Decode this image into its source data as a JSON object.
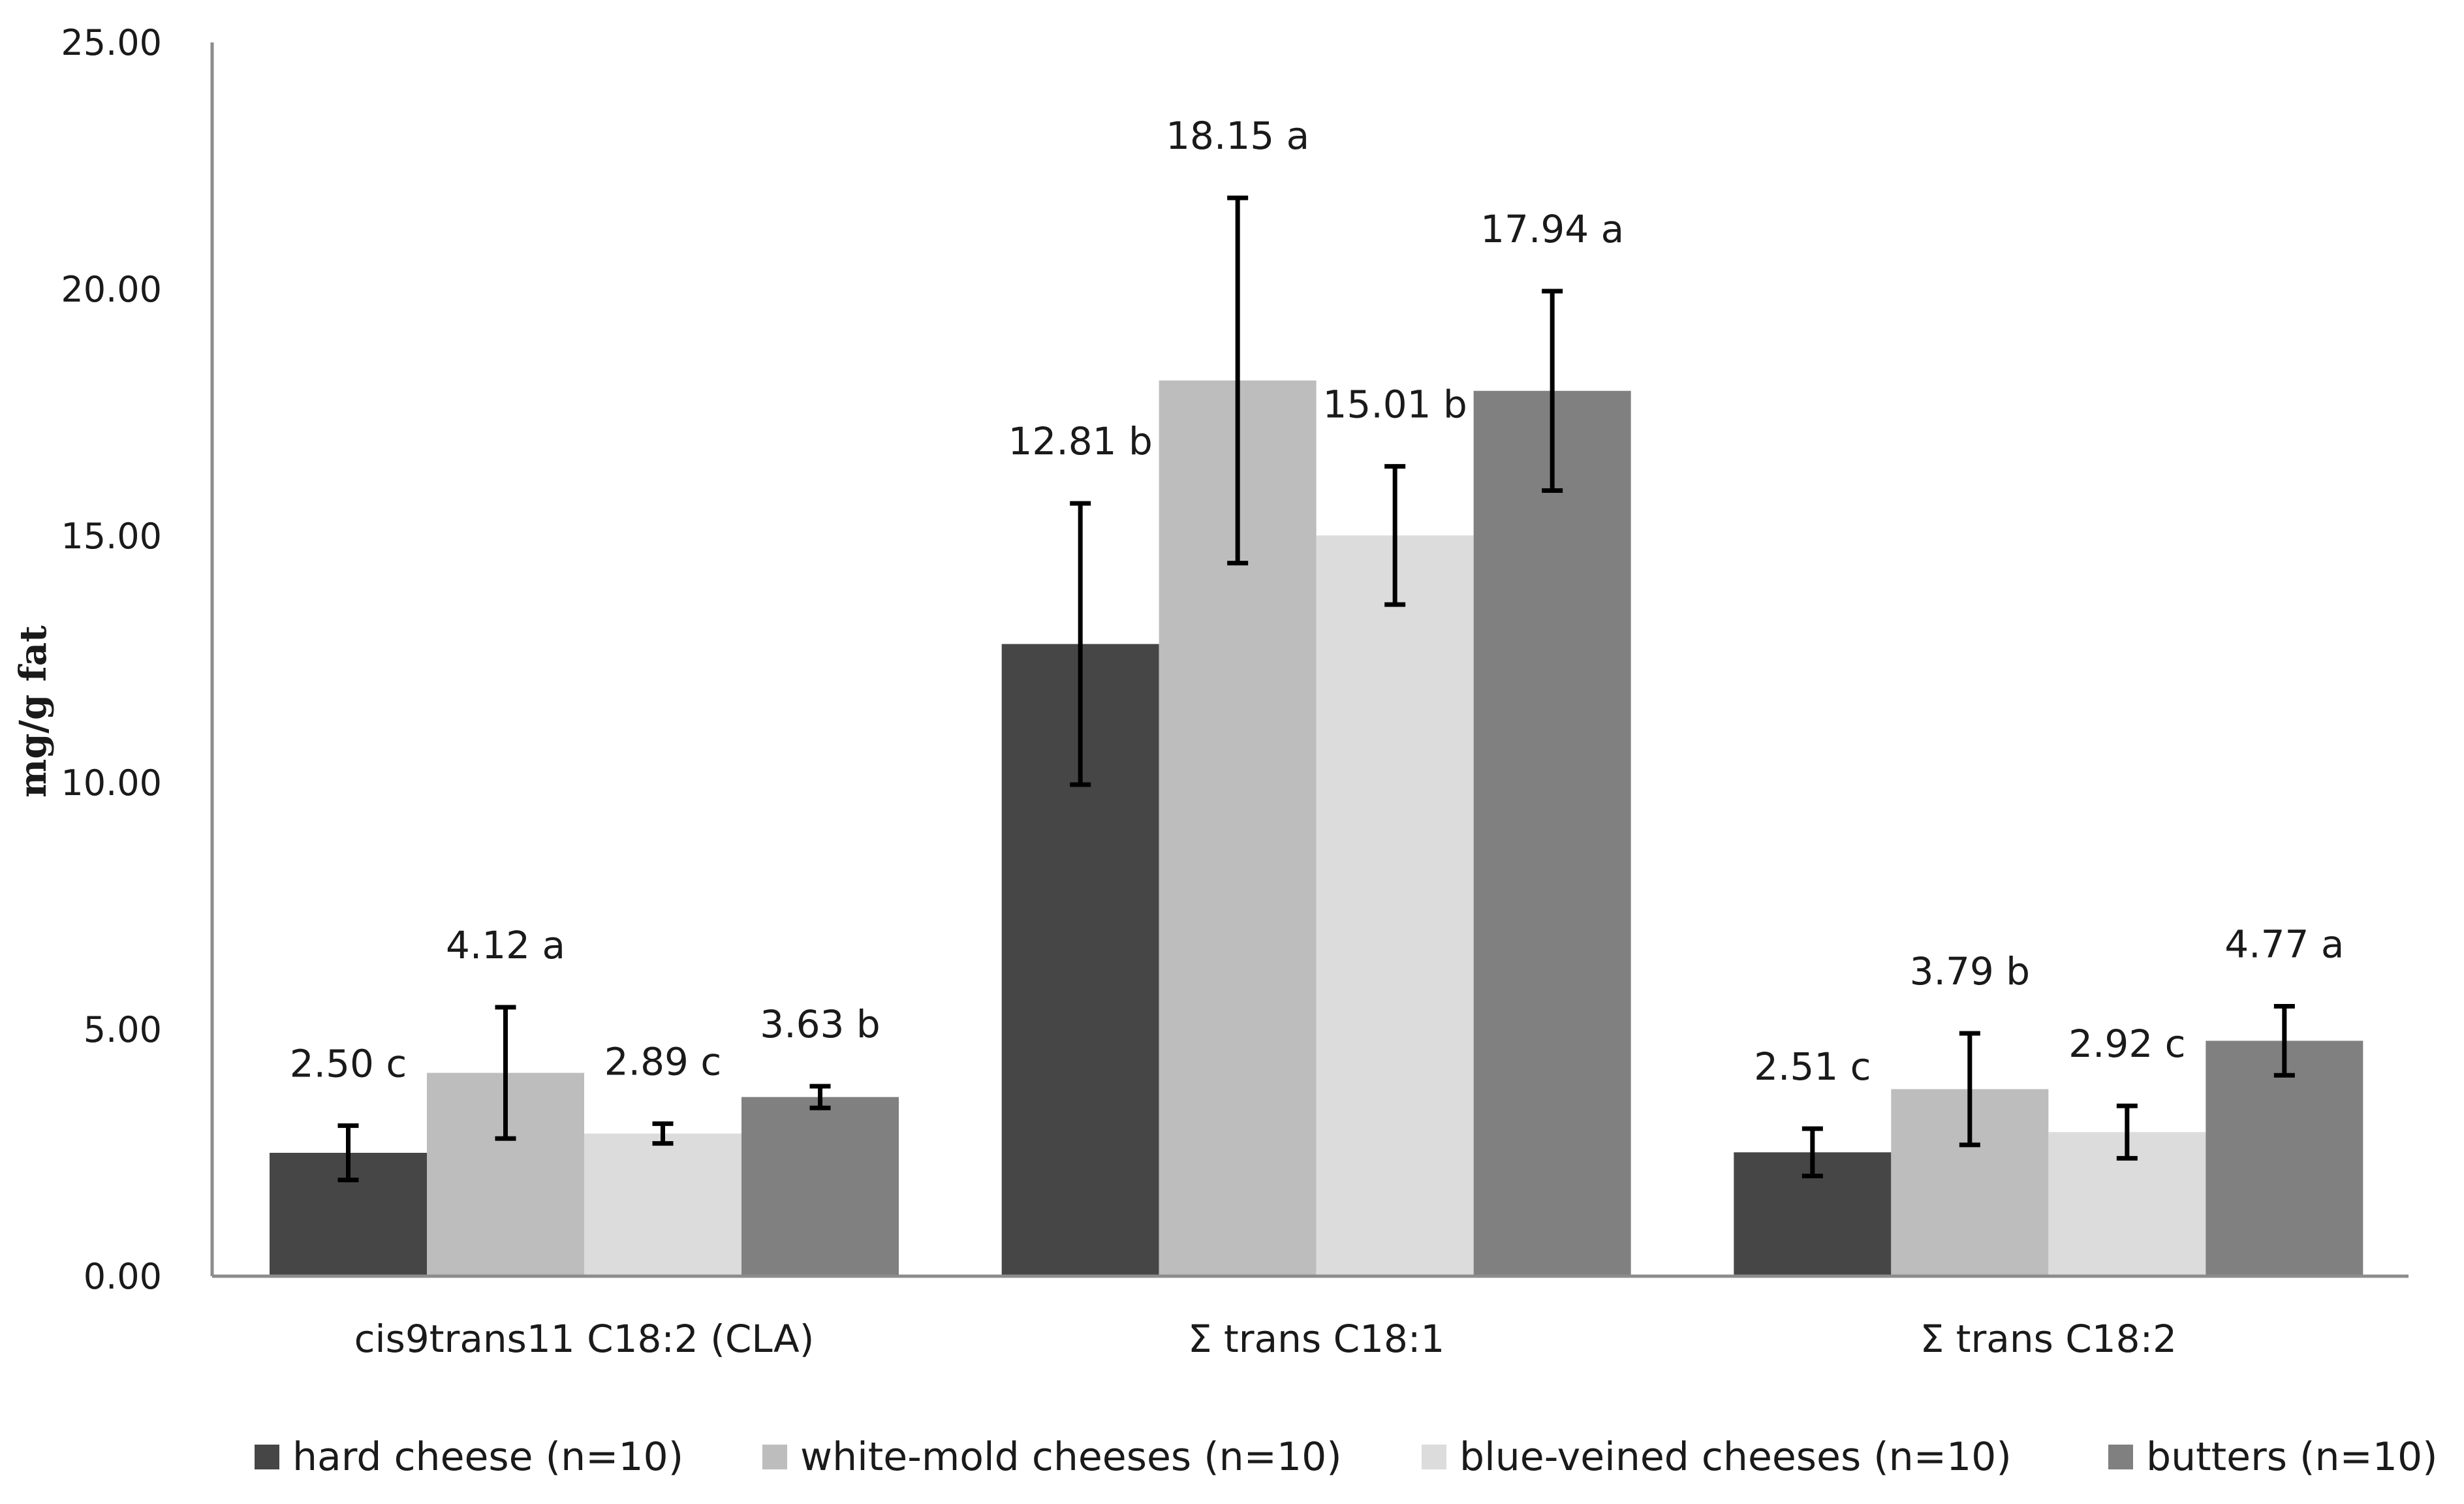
{
  "chart_data": {
    "type": "bar",
    "title": "",
    "xlabel": "",
    "ylabel": "mg/g fat",
    "ylim": [
      0,
      25
    ],
    "yticks": [
      "0.00",
      "5.00",
      "10.00",
      "15.00",
      "20.00",
      "25.00"
    ],
    "ytick_values": [
      0,
      5,
      10,
      15,
      20,
      25
    ],
    "grid": false,
    "legend_position": "bottom",
    "categories": [
      "cis9trans11 C18:2 (CLA)",
      "Σ trans C18:1",
      "Σ trans C18:2"
    ],
    "series": [
      {
        "name": "hard cheese (n=10)",
        "color": "#464646",
        "values": [
          2.5,
          12.81,
          2.51
        ],
        "errors": [
          0.55,
          2.85,
          0.48
        ],
        "labels": [
          "2.50 c",
          "12.81 b",
          "2.51 c"
        ]
      },
      {
        "name": "white-mold cheeses (n=10)",
        "color": "#bdbdbd",
        "values": [
          4.12,
          18.15,
          3.79
        ],
        "errors": [
          1.33,
          3.7,
          1.13
        ],
        "labels": [
          "4.12 a",
          "18.15 a",
          "3.79 b"
        ]
      },
      {
        "name": "blue-veined cheeses (n=10)",
        "color": "#dcdcdc",
        "values": [
          2.89,
          15.01,
          2.92
        ],
        "errors": [
          0.2,
          1.4,
          0.53
        ],
        "labels": [
          "2.89 c",
          "15.01 b",
          "2.92 c"
        ]
      },
      {
        "name": "butters (n=10)",
        "color": "#808080",
        "values": [
          3.63,
          17.94,
          4.77
        ],
        "errors": [
          0.22,
          2.02,
          0.7
        ],
        "labels": [
          "3.63 b",
          "17.94 a",
          "4.77 a"
        ]
      }
    ]
  }
}
